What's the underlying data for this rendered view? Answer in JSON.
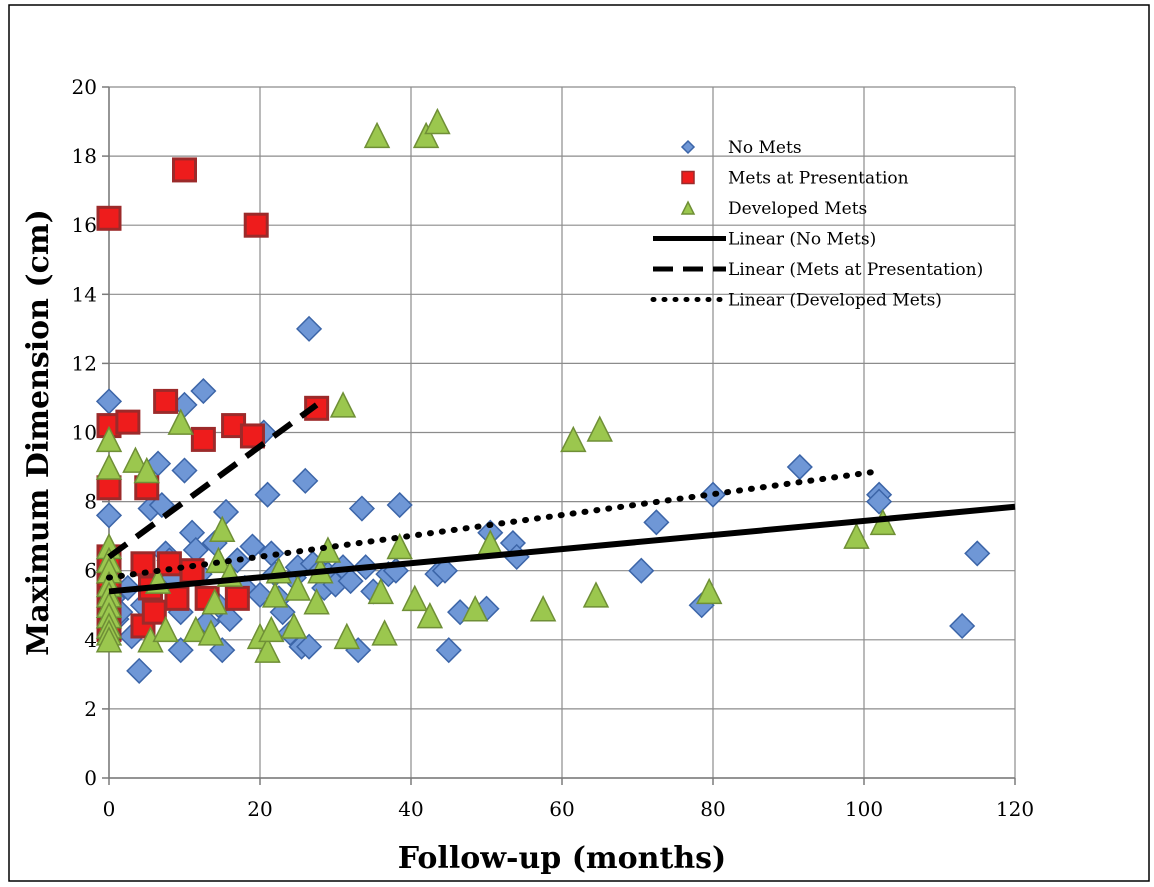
{
  "chart_data": {
    "type": "scatter",
    "title": "",
    "xlabel": "Follow-up (months)",
    "ylabel": "Maximum Dimension (cm)",
    "xlim": [
      0,
      120
    ],
    "ylim": [
      0,
      20
    ],
    "x_ticks": [
      0,
      20,
      40,
      60,
      80,
      100,
      120
    ],
    "y_ticks": [
      0,
      2,
      4,
      6,
      8,
      10,
      12,
      14,
      16,
      18,
      20
    ],
    "grid": true,
    "legend_position": "top-right",
    "series": [
      {
        "name": "No Mets",
        "marker": "diamond",
        "color": "#6f97d6",
        "edge": "#3c65a8",
        "points": [
          [
            0,
            10.9
          ],
          [
            0,
            7.6
          ],
          [
            0,
            6.0
          ],
          [
            0.5,
            5.2
          ],
          [
            1,
            4.6
          ],
          [
            1.5,
            4.8
          ],
          [
            2.5,
            5.5
          ],
          [
            3,
            4.1
          ],
          [
            4,
            3.1
          ],
          [
            4.5,
            5.0
          ],
          [
            5.5,
            7.8
          ],
          [
            6.5,
            9.1
          ],
          [
            7,
            7.9
          ],
          [
            7.5,
            6.5
          ],
          [
            8,
            6.3
          ],
          [
            8.5,
            5.8
          ],
          [
            9.5,
            4.8
          ],
          [
            9.5,
            3.7
          ],
          [
            10,
            10.8
          ],
          [
            10,
            8.9
          ],
          [
            11,
            7.1
          ],
          [
            11.5,
            6.6
          ],
          [
            12,
            5.9
          ],
          [
            12.5,
            11.2
          ],
          [
            13,
            4.5
          ],
          [
            14,
            6.8
          ],
          [
            14.5,
            5.0
          ],
          [
            15,
            3.7
          ],
          [
            15.5,
            7.7
          ],
          [
            16,
            4.6
          ],
          [
            17,
            6.3
          ],
          [
            18,
            5.5
          ],
          [
            19,
            6.7
          ],
          [
            20,
            5.3
          ],
          [
            20.5,
            10.0
          ],
          [
            21,
            8.2
          ],
          [
            21.5,
            6.5
          ],
          [
            22,
            5.9
          ],
          [
            22.5,
            5.2
          ],
          [
            23,
            4.8
          ],
          [
            24,
            4.2
          ],
          [
            24.5,
            5.8
          ],
          [
            25,
            6.1
          ],
          [
            25.5,
            3.8
          ],
          [
            26,
            8.6
          ],
          [
            26.5,
            13.0
          ],
          [
            26.5,
            3.8
          ],
          [
            27,
            6.2
          ],
          [
            28,
            6.0
          ],
          [
            28.5,
            5.5
          ],
          [
            29,
            5.9
          ],
          [
            30,
            5.6
          ],
          [
            31,
            6.1
          ],
          [
            32,
            5.7
          ],
          [
            33,
            3.7
          ],
          [
            33.5,
            7.8
          ],
          [
            34,
            6.1
          ],
          [
            35,
            5.4
          ],
          [
            37,
            5.9
          ],
          [
            38,
            6.0
          ],
          [
            38.5,
            7.9
          ],
          [
            43.5,
            5.9
          ],
          [
            44.5,
            6.0
          ],
          [
            45,
            3.7
          ],
          [
            46.5,
            4.8
          ],
          [
            50,
            4.9
          ],
          [
            50.5,
            7.1
          ],
          [
            53.5,
            6.8
          ],
          [
            54,
            6.4
          ],
          [
            70.5,
            6.0
          ],
          [
            72.5,
            7.4
          ],
          [
            78.5,
            5.0
          ],
          [
            80,
            8.2
          ],
          [
            91.5,
            9.0
          ],
          [
            102,
            8.2
          ],
          [
            102,
            8.0
          ],
          [
            113,
            4.4
          ],
          [
            115,
            6.5
          ]
        ]
      },
      {
        "name": "Mets at Presentation",
        "marker": "square",
        "color": "#ee1c1c",
        "edge": "#9c2a2a",
        "points": [
          [
            0,
            16.2
          ],
          [
            0,
            10.2
          ],
          [
            0,
            8.4
          ],
          [
            0,
            6.4
          ],
          [
            0,
            6.1
          ],
          [
            0,
            5.6
          ],
          [
            0,
            5.2
          ],
          [
            0,
            4.9
          ],
          [
            0,
            4.6
          ],
          [
            0,
            4.3
          ],
          [
            2.5,
            10.3
          ],
          [
            4.5,
            6.2
          ],
          [
            4.5,
            4.4
          ],
          [
            5,
            8.4
          ],
          [
            5.5,
            5.5
          ],
          [
            6,
            4.8
          ],
          [
            7.5,
            10.9
          ],
          [
            8,
            6.2
          ],
          [
            9,
            5.2
          ],
          [
            10,
            17.6
          ],
          [
            11,
            6.0
          ],
          [
            12.5,
            9.8
          ],
          [
            13,
            5.2
          ],
          [
            16.5,
            10.2
          ],
          [
            17,
            5.2
          ],
          [
            19,
            9.9
          ],
          [
            19.5,
            16.0
          ],
          [
            27.5,
            10.7
          ]
        ]
      },
      {
        "name": "Developed Mets",
        "marker": "triangle",
        "color": "#9bc74e",
        "edge": "#6f8f36",
        "points": [
          [
            0,
            9.8
          ],
          [
            0,
            9.0
          ],
          [
            0,
            6.7
          ],
          [
            0,
            6.3
          ],
          [
            0,
            6.0
          ],
          [
            0,
            5.6
          ],
          [
            0,
            5.3
          ],
          [
            0,
            5.0
          ],
          [
            0,
            4.7
          ],
          [
            0,
            4.4
          ],
          [
            0,
            4.2
          ],
          [
            0,
            4.0
          ],
          [
            3.5,
            9.2
          ],
          [
            5,
            8.9
          ],
          [
            5.5,
            4.0
          ],
          [
            6.5,
            5.7
          ],
          [
            7.5,
            4.3
          ],
          [
            9.5,
            10.3
          ],
          [
            11.5,
            4.3
          ],
          [
            13.5,
            4.2
          ],
          [
            14,
            5.1
          ],
          [
            14.5,
            6.3
          ],
          [
            15,
            7.2
          ],
          [
            16,
            5.9
          ],
          [
            20,
            4.1
          ],
          [
            21,
            3.7
          ],
          [
            21.5,
            4.3
          ],
          [
            22,
            5.3
          ],
          [
            22.5,
            6.0
          ],
          [
            24.5,
            4.4
          ],
          [
            25,
            5.5
          ],
          [
            27.5,
            5.1
          ],
          [
            28,
            6.0
          ],
          [
            29,
            6.6
          ],
          [
            31,
            10.8
          ],
          [
            31.5,
            4.1
          ],
          [
            35.5,
            18.6
          ],
          [
            36,
            5.4
          ],
          [
            36.5,
            4.2
          ],
          [
            38.5,
            6.7
          ],
          [
            40.5,
            5.2
          ],
          [
            42,
            18.6
          ],
          [
            42.5,
            4.7
          ],
          [
            43.5,
            19.0
          ],
          [
            48.5,
            4.9
          ],
          [
            50.5,
            6.8
          ],
          [
            57.5,
            4.9
          ],
          [
            61.5,
            9.8
          ],
          [
            64.5,
            5.3
          ],
          [
            65,
            10.1
          ],
          [
            79.5,
            5.4
          ],
          [
            99,
            7.0
          ],
          [
            102.5,
            7.4
          ]
        ]
      }
    ],
    "trendlines": [
      {
        "name": "Linear (No Mets)",
        "style": "solid",
        "x": [
          0,
          120
        ],
        "y": [
          5.4,
          7.85
        ]
      },
      {
        "name": "Linear (Mets at Presentation)",
        "style": "dashed",
        "x": [
          0,
          27.5
        ],
        "y": [
          6.4,
          10.8
        ]
      },
      {
        "name": "Linear (Developed Mets)",
        "style": "dotted",
        "x": [
          0,
          101
        ],
        "y": [
          5.8,
          8.85
        ]
      }
    ]
  }
}
